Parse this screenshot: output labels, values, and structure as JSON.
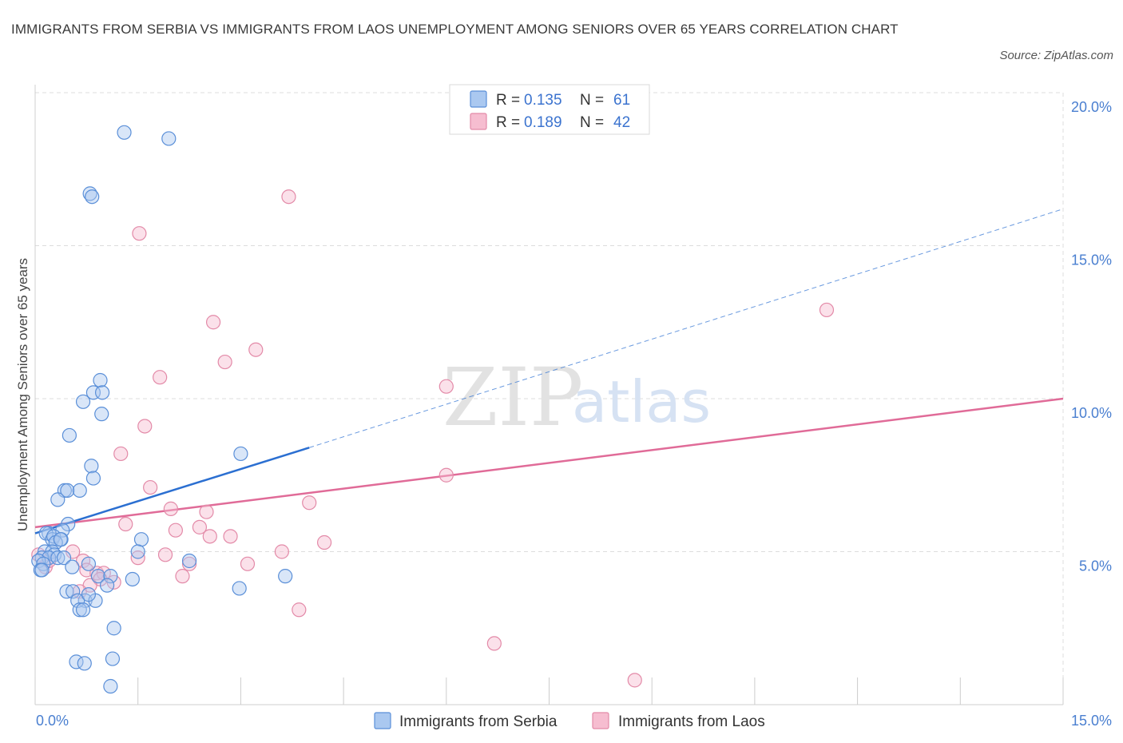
{
  "header": {
    "title": "IMMIGRANTS FROM SERBIA VS IMMIGRANTS FROM LAOS UNEMPLOYMENT AMONG SENIORS OVER 65 YEARS CORRELATION CHART",
    "source": "Source: ZipAtlas.com"
  },
  "watermark": {
    "part1": "ZIP",
    "part2": "atlas"
  },
  "colors": {
    "serbia_fill": "#aac8f0",
    "serbia_stroke": "#5a8fd8",
    "serbia_line": "#2b6fd1",
    "laos_fill": "#f6bdd0",
    "laos_stroke": "#e38aa8",
    "laos_line": "#e06b98",
    "grid": "#dddddd",
    "axis_tick_text": "#4a7fd0"
  },
  "stats_legend": [
    {
      "r_label": "R =",
      "r_value": "0.135",
      "n_label": "N =",
      "n_value": "61"
    },
    {
      "r_label": "R =",
      "r_value": "0.189",
      "n_label": "N =",
      "n_value": "42"
    }
  ],
  "chart_data": {
    "type": "scatter",
    "title": "IMMIGRANTS FROM SERBIA VS IMMIGRANTS FROM LAOS UNEMPLOYMENT AMONG SENIORS OVER 65 YEARS CORRELATION CHART",
    "xlabel": "",
    "ylabel": "Unemployment Among Seniors over 65 years",
    "xlim": [
      0,
      15
    ],
    "ylim": [
      0,
      20
    ],
    "x_tick_labels": [
      "0.0%",
      "15.0%"
    ],
    "y_ticks": [
      5,
      10,
      15,
      20
    ],
    "y_tick_labels": [
      "5.0%",
      "10.0%",
      "15.0%",
      "20.0%"
    ],
    "grid": true,
    "legend_position": "top-center",
    "series": [
      {
        "name": "Immigrants from Serbia",
        "R": 0.135,
        "N": 61,
        "trend": {
          "x0": 0,
          "y0": 5.6,
          "x1": 4.0,
          "y1": 8.4,
          "dashed_to_x": 15,
          "dashed_to_y": 16.2
        },
        "points": [
          [
            1.3,
            18.7
          ],
          [
            1.95,
            18.5
          ],
          [
            0.8,
            16.7
          ],
          [
            0.83,
            16.6
          ],
          [
            0.95,
            10.6
          ],
          [
            0.85,
            10.2
          ],
          [
            0.98,
            10.2
          ],
          [
            0.7,
            9.9
          ],
          [
            0.97,
            9.5
          ],
          [
            0.5,
            8.8
          ],
          [
            3.0,
            8.2
          ],
          [
            0.82,
            7.8
          ],
          [
            0.85,
            7.4
          ],
          [
            0.43,
            7.0
          ],
          [
            0.47,
            7.0
          ],
          [
            0.65,
            7.0
          ],
          [
            0.33,
            6.7
          ],
          [
            0.48,
            5.9
          ],
          [
            0.4,
            5.7
          ],
          [
            0.2,
            5.6
          ],
          [
            0.16,
            5.6
          ],
          [
            0.25,
            5.4
          ],
          [
            0.27,
            5.5
          ],
          [
            0.38,
            5.4
          ],
          [
            0.3,
            5.3
          ],
          [
            0.37,
            5.4
          ],
          [
            1.55,
            5.4
          ],
          [
            0.14,
            5.0
          ],
          [
            0.25,
            5.0
          ],
          [
            0.28,
            4.9
          ],
          [
            1.5,
            5.0
          ],
          [
            0.1,
            4.8
          ],
          [
            0.2,
            4.8
          ],
          [
            0.33,
            4.8
          ],
          [
            0.42,
            4.8
          ],
          [
            2.25,
            4.7
          ],
          [
            0.05,
            4.7
          ],
          [
            0.12,
            4.6
          ],
          [
            0.08,
            4.4
          ],
          [
            0.1,
            4.4
          ],
          [
            0.54,
            4.5
          ],
          [
            0.78,
            4.6
          ],
          [
            0.92,
            4.2
          ],
          [
            1.1,
            4.2
          ],
          [
            1.42,
            4.1
          ],
          [
            3.65,
            4.2
          ],
          [
            1.05,
            3.9
          ],
          [
            0.46,
            3.7
          ],
          [
            0.55,
            3.7
          ],
          [
            2.98,
            3.8
          ],
          [
            0.73,
            3.4
          ],
          [
            0.62,
            3.4
          ],
          [
            0.88,
            3.4
          ],
          [
            0.65,
            3.1
          ],
          [
            0.7,
            3.1
          ],
          [
            1.15,
            2.5
          ],
          [
            0.6,
            1.4
          ],
          [
            0.72,
            1.35
          ],
          [
            1.13,
            1.5
          ],
          [
            1.1,
            0.6
          ],
          [
            0.78,
            3.6
          ]
        ]
      },
      {
        "name": "Immigrants from Laos",
        "R": 0.189,
        "N": 42,
        "trend": {
          "x0": 0,
          "y0": 5.8,
          "x1": 15,
          "y1": 10.0
        },
        "points": [
          [
            3.7,
            16.6
          ],
          [
            1.52,
            15.4
          ],
          [
            11.55,
            12.9
          ],
          [
            2.6,
            12.5
          ],
          [
            3.22,
            11.6
          ],
          [
            2.77,
            11.2
          ],
          [
            1.82,
            10.7
          ],
          [
            6.0,
            10.4
          ],
          [
            1.6,
            9.1
          ],
          [
            1.25,
            8.2
          ],
          [
            6.0,
            7.5
          ],
          [
            1.68,
            7.1
          ],
          [
            4.0,
            6.6
          ],
          [
            1.98,
            6.4
          ],
          [
            2.5,
            6.3
          ],
          [
            1.32,
            5.9
          ],
          [
            2.05,
            5.7
          ],
          [
            2.4,
            5.8
          ],
          [
            2.55,
            5.5
          ],
          [
            2.85,
            5.5
          ],
          [
            4.22,
            5.3
          ],
          [
            0.55,
            5.0
          ],
          [
            3.6,
            5.0
          ],
          [
            1.9,
            4.9
          ],
          [
            1.5,
            4.8
          ],
          [
            0.7,
            4.7
          ],
          [
            2.25,
            4.6
          ],
          [
            3.1,
            4.6
          ],
          [
            0.75,
            4.4
          ],
          [
            0.15,
            4.5
          ],
          [
            0.9,
            4.3
          ],
          [
            1.0,
            4.3
          ],
          [
            2.15,
            4.2
          ],
          [
            0.95,
            4.1
          ],
          [
            1.15,
            4.0
          ],
          [
            0.8,
            3.9
          ],
          [
            0.65,
            3.7
          ],
          [
            3.85,
            3.1
          ],
          [
            6.7,
            2.0
          ],
          [
            8.75,
            0.8
          ],
          [
            0.05,
            4.9
          ],
          [
            0.2,
            4.7
          ]
        ]
      }
    ]
  }
}
